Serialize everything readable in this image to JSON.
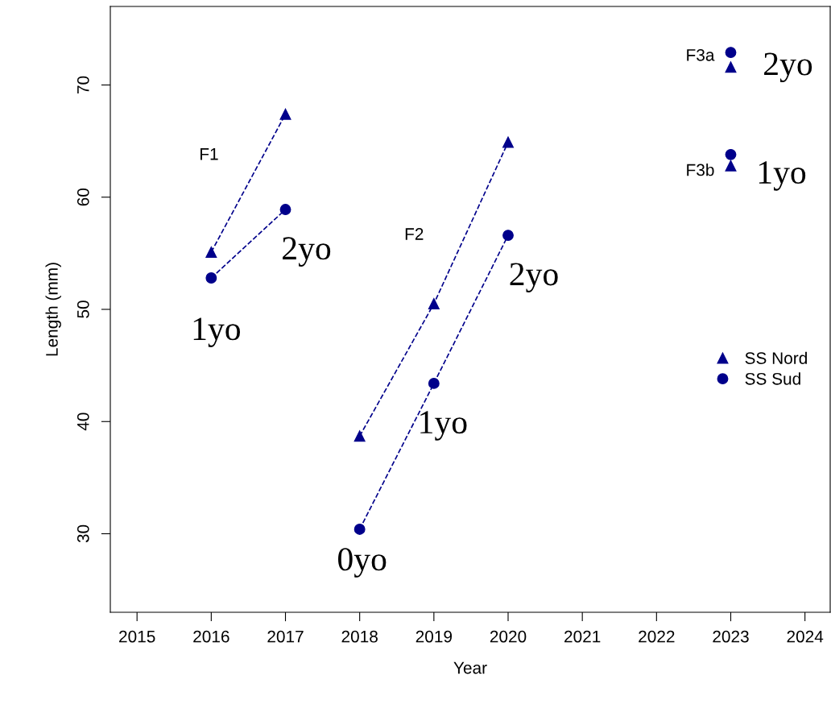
{
  "chart_data": {
    "type": "line",
    "xlabel": "Year",
    "ylabel": "Length (mm)",
    "xlim": [
      2014.64,
      2024.34
    ],
    "xticks": [
      2015,
      2016,
      2017,
      2018,
      2019,
      2020,
      2021,
      2022,
      2023,
      2024
    ],
    "ylim": [
      23.0,
      77.0
    ],
    "yticks": [
      30,
      40,
      50,
      60,
      70
    ],
    "grid": false,
    "legend": "right",
    "line_style": "dashed",
    "series": [
      {
        "name": "SS Nord",
        "marker": "triangle",
        "color": "#00008b",
        "x": [
          2016,
          2017
        ],
        "values": [
          55.1,
          67.4
        ]
      },
      {
        "name": "SS Sud",
        "marker": "circle",
        "color": "#00008b",
        "x": [
          2016,
          2017
        ],
        "values": [
          52.8,
          58.9
        ]
      },
      {
        "marker": "triangle",
        "color": "#00008b",
        "x": [
          2018,
          2019,
          2020
        ],
        "values": [
          38.7,
          50.5,
          64.9
        ]
      },
      {
        "marker": "circle",
        "color": "#00008b",
        "x": [
          2018,
          2019,
          2020
        ],
        "values": [
          30.4,
          43.4,
          56.6
        ]
      },
      {
        "type": "scatter",
        "marker": "triangle",
        "color": "#00008b",
        "x": [
          2023,
          2023
        ],
        "values": [
          71.6,
          62.8
        ]
      },
      {
        "type": "scatter",
        "marker": "circle",
        "color": "#00008b",
        "x": [
          2023,
          2023
        ],
        "values": [
          72.9,
          63.8
        ]
      }
    ],
    "annotations": [
      "F1",
      {
        "text": "2yo",
        "x": 2017,
        "y": 58.9
      },
      {
        "text": "1yo",
        "x": 2016,
        "y": 52.8
      },
      "F2",
      {
        "text": "2yo",
        "x": 2020,
        "y": 56.6
      },
      {
        "text": "1yo",
        "x": 2019,
        "y": 43.4
      },
      {
        "text": "0yo",
        "x": 2018,
        "y": 30.4
      },
      {
        "text": "F3a",
        "x": 2023,
        "y": 72.9
      },
      {
        "text": "2yo",
        "x": 2023,
        "y": 71.6
      },
      {
        "text": "F3b",
        "x": 2023,
        "y": 62.8
      },
      {
        "text": "1yo",
        "x": 2023,
        "y": 62.8
      }
    ]
  }
}
